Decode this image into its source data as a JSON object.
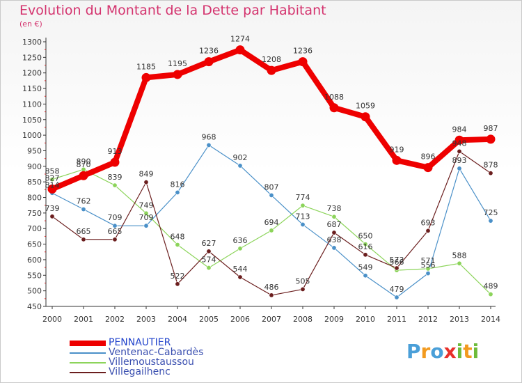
{
  "title": "Evolution du Montant de la Dette par Habitant",
  "subtitle": "(en €)",
  "logo": {
    "letters": [
      {
        "ch": "P",
        "color": "#4a9fd8"
      },
      {
        "ch": "r",
        "color": "#f29a1f"
      },
      {
        "ch": "o",
        "color": "#4a9fd8"
      },
      {
        "ch": "x",
        "color": "#e8302a"
      },
      {
        "ch": "i",
        "color": "#6dbb3a"
      },
      {
        "ch": "t",
        "color": "#f29a1f"
      },
      {
        "ch": "i",
        "color": "#6dbb3a"
      }
    ]
  },
  "chart_data": {
    "type": "line",
    "title": "Evolution du Montant de la Dette par Habitant",
    "ylabel": "(en €)",
    "x": [
      "2000",
      "2001",
      "2002",
      "2003",
      "2004",
      "2005",
      "2006",
      "2007",
      "2008",
      "2009",
      "2010",
      "2011",
      "2012",
      "2013",
      "2014"
    ],
    "ylim": [
      450,
      1300
    ],
    "yticks": [
      450,
      500,
      550,
      600,
      650,
      700,
      750,
      800,
      850,
      900,
      950,
      1000,
      1050,
      1100,
      1150,
      1200,
      1250,
      1300
    ],
    "grid": false,
    "legend_position": "bottom-left",
    "series": [
      {
        "name": "PENNAUTIER",
        "color": "#ee0000",
        "width": 8,
        "values": [
          827,
          870,
          913,
          1185,
          1195,
          1236,
          1274,
          1208,
          1236,
          1088,
          1059,
          919,
          896,
          984,
          987
        ],
        "labels": [
          "827",
          "870",
          "913",
          "1185",
          "1195",
          "1236",
          "1274",
          "1208",
          "1236",
          "1088",
          "1059",
          "919",
          "896",
          "984",
          "987"
        ]
      },
      {
        "name": "Ventenac-Cabardès",
        "color": "#4a90c8",
        "width": 1.2,
        "values": [
          814,
          762,
          709,
          709,
          816,
          968,
          902,
          807,
          713,
          638,
          549,
          479,
          556,
          893,
          725
        ],
        "labels": [
          "814",
          "762",
          "709",
          "709",
          "816",
          "968",
          "902",
          "807",
          "713",
          "638",
          "549",
          "479",
          "556",
          "893",
          "725"
        ]
      },
      {
        "name": "Villemoustaussou",
        "color": "#8cd45a",
        "width": 1.2,
        "values": [
          858,
          890,
          839,
          749,
          648,
          574,
          636,
          694,
          774,
          738,
          650,
          566,
          571,
          588,
          489
        ],
        "labels": [
          "858",
          "890",
          "839",
          "749",
          "648",
          "574",
          "636",
          "694",
          "774",
          "738",
          "650",
          "566",
          "571",
          "588",
          "489"
        ]
      },
      {
        "name": "Villegailhenc",
        "color": "#6b1e1e",
        "width": 1.2,
        "values": [
          739,
          665,
          665,
          849,
          522,
          627,
          544,
          486,
          505,
          687,
          616,
          573,
          693,
          948,
          878
        ],
        "labels": [
          "739",
          "665",
          "665",
          "849",
          "522",
          "627",
          "544",
          "486",
          "505",
          "687",
          "616",
          "573",
          "693",
          "948",
          "878"
        ]
      }
    ]
  }
}
